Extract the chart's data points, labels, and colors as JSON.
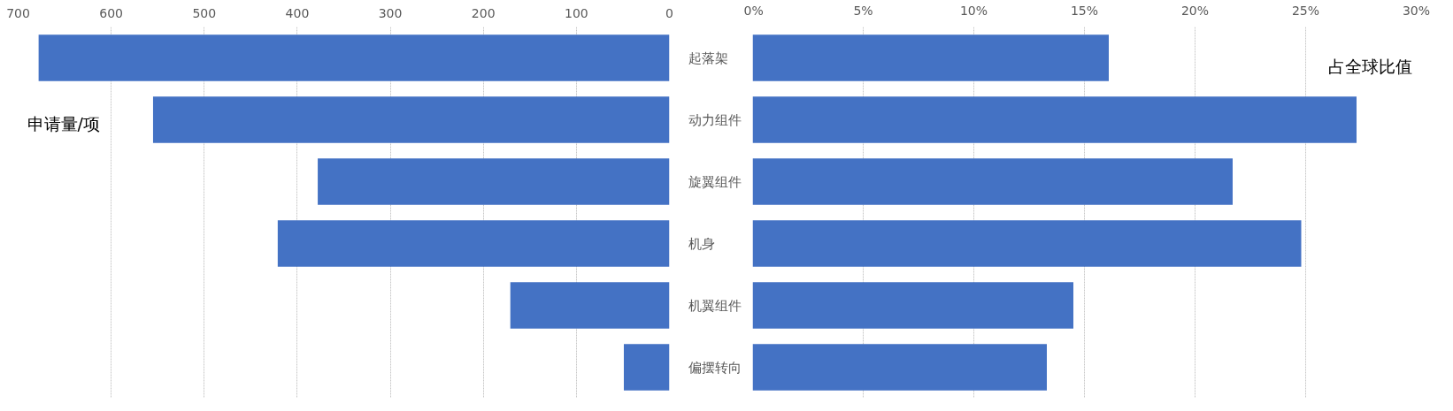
{
  "chart_data": [
    {
      "type": "bar",
      "orientation": "horizontal",
      "categories": [
        "起落架",
        "动力组件",
        "旋翼组件",
        "机身",
        "机翼组件",
        "偏摆转向"
      ],
      "series": [
        {
          "color": "#4472c4",
          "values": [
            678,
            555,
            378,
            421,
            171,
            49
          ]
        }
      ],
      "xlim": [
        700,
        0
      ],
      "xticks": [
        700,
        600,
        500,
        400,
        300,
        200,
        100,
        0
      ],
      "grid": "x",
      "annotations": [
        "申请量/项"
      ]
    },
    {
      "type": "bar",
      "orientation": "horizontal",
      "categories": [
        null,
        null,
        null,
        null,
        null,
        null
      ],
      "series": [
        {
          "color": "#4472c4",
          "values": [
            16.1,
            27.3,
            21.7,
            24.8,
            14.5,
            13.3
          ]
        }
      ],
      "xlim": [
        0,
        30
      ],
      "xticks": [
        {
          "value": 0,
          "label": "0%"
        },
        {
          "value": 5,
          "label": "5%"
        },
        {
          "value": 10,
          "label": "10%"
        },
        {
          "value": 15,
          "label": "15%"
        },
        {
          "value": 20,
          "label": "20%"
        },
        {
          "value": 25,
          "label": "25%"
        },
        {
          "value": 30,
          "label": "30%"
        }
      ],
      "grid": "x",
      "tick_labels": "x",
      "annotations": [
        "占全球比值"
      ]
    }
  ]
}
